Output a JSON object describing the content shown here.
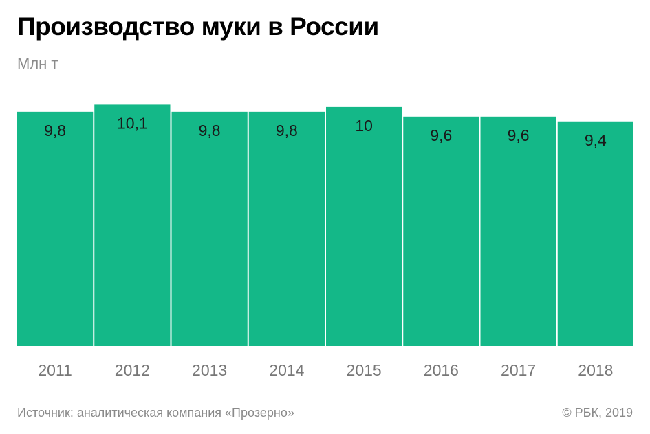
{
  "header": {
    "title": "Производство муки в России",
    "unit": "Млн т"
  },
  "footer": {
    "source": "Источник: аналитическая компания «Прозерно»",
    "credit": "© РБК, 2019"
  },
  "colors": {
    "bar": "#14b888",
    "bar_label": "#1a1a1a",
    "axis_label": "#777777"
  },
  "chart_data": {
    "type": "bar",
    "title": "Производство муки в России",
    "ylabel": "Млн т",
    "xlabel": "",
    "categories": [
      "2011",
      "2012",
      "2013",
      "2014",
      "2015",
      "2016",
      "2017",
      "2018"
    ],
    "values": [
      9.8,
      10.1,
      9.8,
      9.8,
      10,
      9.6,
      9.6,
      9.4
    ],
    "value_labels": [
      "9,8",
      "10,1",
      "9,8",
      "9,8",
      "10",
      "9,6",
      "9,6",
      "9,4"
    ],
    "ylim": [
      0,
      10.6
    ],
    "grid": false,
    "legend": "none"
  }
}
